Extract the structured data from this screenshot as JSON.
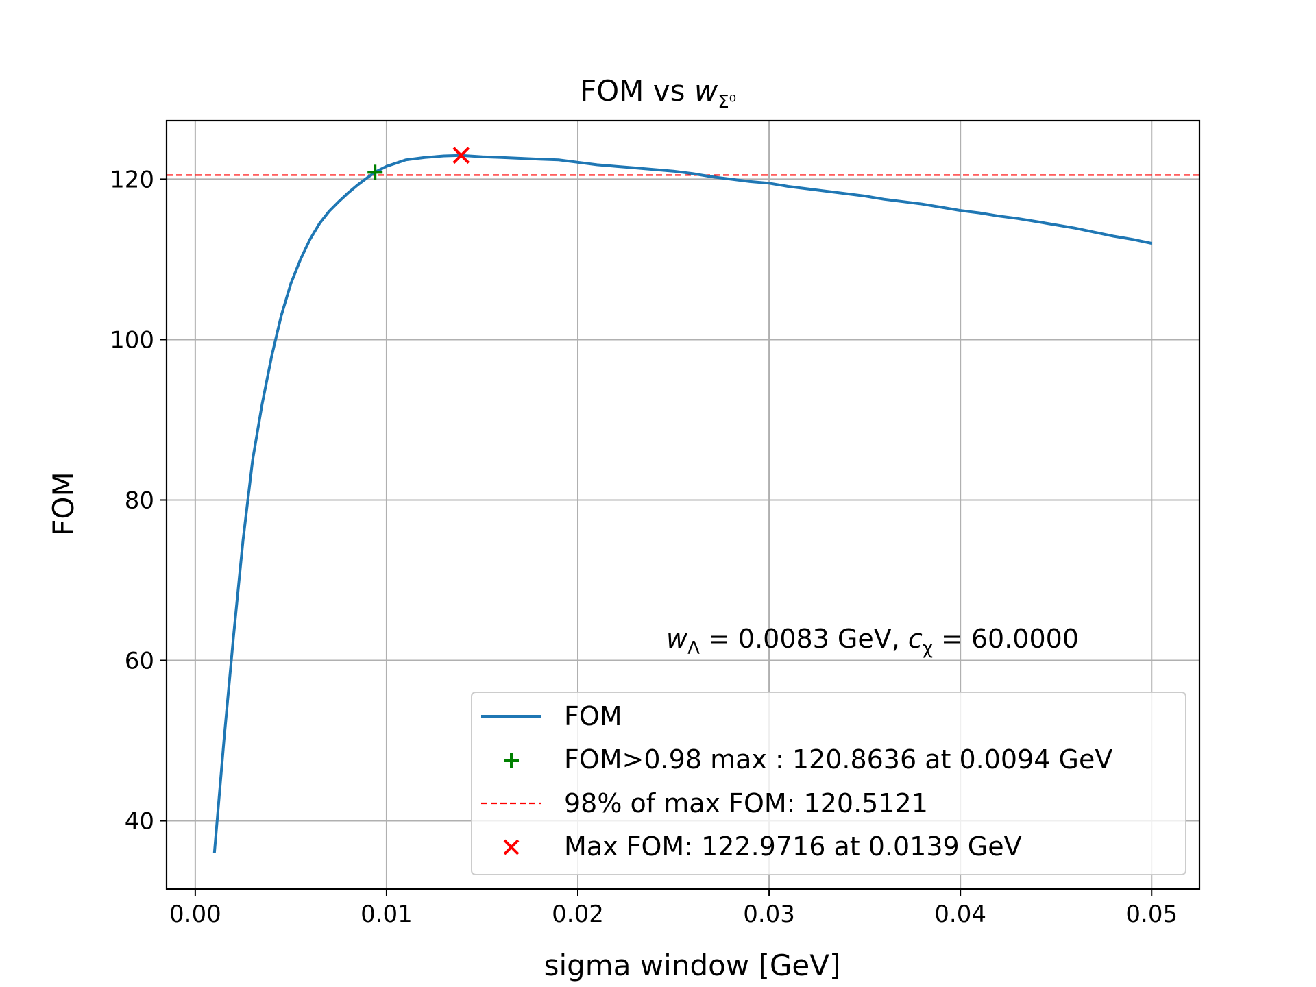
{
  "chart_data": {
    "type": "line",
    "title": {
      "main": "FOM vs ",
      "var": "w",
      "sub": "Σ⁰"
    },
    "xlabel": "sigma window [GeV]",
    "ylabel": "FOM",
    "xlim": [
      -0.0015,
      0.0525
    ],
    "ylim": [
      31.5,
      127.3
    ],
    "xticks": [
      0.0,
      0.01,
      0.02,
      0.03,
      0.04,
      0.05
    ],
    "xtick_labels": [
      "0.00",
      "0.01",
      "0.02",
      "0.03",
      "0.04",
      "0.05"
    ],
    "yticks": [
      40,
      60,
      80,
      100,
      120
    ],
    "ytick_labels": [
      "40",
      "60",
      "80",
      "100",
      "120"
    ],
    "grid": true,
    "series": [
      {
        "name": "FOM",
        "color": "#1f77b4",
        "x": [
          0.001,
          0.0015,
          0.002,
          0.0025,
          0.003,
          0.0035,
          0.004,
          0.0045,
          0.005,
          0.0055,
          0.006,
          0.0065,
          0.007,
          0.0075,
          0.008,
          0.0085,
          0.009,
          0.0095,
          0.01,
          0.011,
          0.012,
          0.013,
          0.0139,
          0.015,
          0.016,
          0.017,
          0.018,
          0.019,
          0.02,
          0.021,
          0.022,
          0.023,
          0.024,
          0.025,
          0.026,
          0.027,
          0.028,
          0.029,
          0.03,
          0.031,
          0.032,
          0.033,
          0.034,
          0.035,
          0.036,
          0.037,
          0.038,
          0.039,
          0.04,
          0.041,
          0.042,
          0.043,
          0.044,
          0.045,
          0.046,
          0.047,
          0.048,
          0.049,
          0.05
        ],
        "y": [
          36,
          50,
          63,
          75,
          85,
          92,
          98,
          103,
          107,
          110,
          112.5,
          114.5,
          116,
          117.2,
          118.3,
          119.3,
          120.2,
          121,
          121.6,
          122.4,
          122.7,
          122.9,
          122.97,
          122.8,
          122.7,
          122.6,
          122.5,
          122.4,
          122.1,
          121.8,
          121.6,
          121.4,
          121.2,
          121.0,
          120.7,
          120.3,
          120.0,
          119.7,
          119.5,
          119.1,
          118.8,
          118.5,
          118.2,
          117.9,
          117.5,
          117.2,
          116.9,
          116.5,
          116.1,
          115.8,
          115.4,
          115.1,
          114.7,
          114.3,
          113.9,
          113.4,
          112.9,
          112.5,
          112.0
        ]
      },
      {
        "name": "FOM>0.98 max : 120.8636 at 0.0094 GeV",
        "color": "#008000",
        "marker": "plus",
        "x": [
          0.0094
        ],
        "y": [
          120.8636
        ]
      },
      {
        "name": "98% of max FOM: 120.5121",
        "color": "#ff0000",
        "style": "dashed",
        "hline": 120.5121
      },
      {
        "name": "Max FOM: 122.9716 at 0.0139 GeV",
        "color": "#ff0000",
        "marker": "x",
        "x": [
          0.0139
        ],
        "y": [
          122.9716
        ]
      }
    ],
    "annotation": {
      "w_var": "w",
      "w_sub": "Λ",
      "w_value": " = 0.0083 GeV, ",
      "c_var": "c",
      "c_sub": "χ",
      "c_value": " = 60.0000"
    },
    "legend_position": "lower-right"
  }
}
